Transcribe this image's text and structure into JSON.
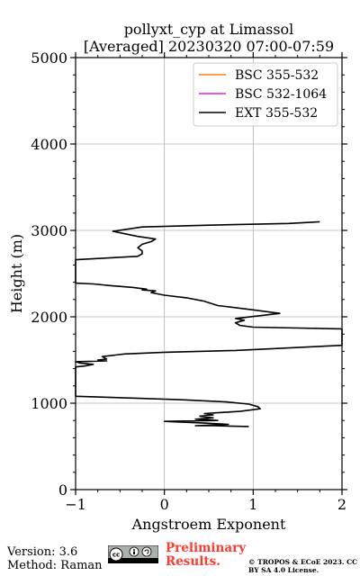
{
  "chart_data": {
    "type": "line",
    "title": "pollyxt_cyp at Limassol",
    "subtitle": "[Averaged] 20230320 07:00-07:59",
    "xlabel": "Angstroem Exponent",
    "ylabel": "Height (m)",
    "xlim": [
      -1,
      2
    ],
    "ylim": [
      0,
      5000
    ],
    "x_ticks": [
      -1,
      0,
      1,
      2
    ],
    "x_tick_labels": [
      "−1",
      "0",
      "1",
      "2"
    ],
    "y_ticks": [
      0,
      1000,
      2000,
      3000,
      4000,
      5000
    ],
    "y_tick_labels": [
      "0",
      "1000",
      "2000",
      "3000",
      "4000",
      "5000"
    ],
    "grid": true,
    "legend_position": "top-right",
    "series": [
      {
        "name": "BSC 355-532",
        "color": "#ff7f0e",
        "points": []
      },
      {
        "name": "BSC 532-1064",
        "color": "#e020e0",
        "points": []
      },
      {
        "name": "EXT 355-532",
        "color": "#000000",
        "points": [
          [
            0.95,
            730
          ],
          [
            0.55,
            740
          ],
          [
            0.35,
            740
          ],
          [
            0.72,
            755
          ],
          [
            0.45,
            770
          ],
          [
            0.0,
            790
          ],
          [
            0.6,
            800
          ],
          [
            0.35,
            815
          ],
          [
            0.55,
            830
          ],
          [
            0.4,
            850
          ],
          [
            0.55,
            865
          ],
          [
            0.45,
            880
          ],
          [
            0.6,
            890
          ],
          [
            0.85,
            905
          ],
          [
            1.08,
            935
          ],
          [
            1.05,
            960
          ],
          [
            0.95,
            990
          ],
          [
            0.7,
            1015
          ],
          [
            0.2,
            1040
          ],
          [
            -0.4,
            1060
          ],
          [
            -1.0,
            1080
          ],
          [
            -1.0,
            1420
          ],
          [
            -0.9,
            1430
          ],
          [
            -0.8,
            1450
          ],
          [
            -0.95,
            1465
          ],
          [
            -1.0,
            1480
          ],
          [
            -0.65,
            1490
          ],
          [
            -0.75,
            1500
          ],
          [
            -0.65,
            1510
          ],
          [
            -0.7,
            1540
          ],
          [
            -0.45,
            1570
          ],
          [
            0.0,
            1590
          ],
          [
            0.8,
            1610
          ],
          [
            2.0,
            1670
          ],
          [
            2.0,
            1860
          ],
          [
            1.0,
            1880
          ],
          [
            0.85,
            1900
          ],
          [
            0.8,
            1930
          ],
          [
            0.9,
            1960
          ],
          [
            0.8,
            1980
          ],
          [
            1.3,
            2040
          ],
          [
            1.0,
            2080
          ],
          [
            0.6,
            2130
          ],
          [
            0.45,
            2180
          ],
          [
            0.25,
            2220
          ],
          [
            0.0,
            2250
          ],
          [
            -0.15,
            2280
          ],
          [
            -0.1,
            2300
          ],
          [
            -0.25,
            2310
          ],
          [
            -0.2,
            2320
          ],
          [
            -0.35,
            2340
          ],
          [
            -0.6,
            2360
          ],
          [
            -0.8,
            2380
          ],
          [
            -1.0,
            2390
          ],
          [
            -1.0,
            2660
          ],
          [
            -0.3,
            2700
          ],
          [
            -0.25,
            2730
          ],
          [
            -0.25,
            2760
          ],
          [
            -0.3,
            2800
          ],
          [
            -0.25,
            2840
          ],
          [
            -0.15,
            2870
          ],
          [
            -0.1,
            2900
          ],
          [
            -0.3,
            2930
          ],
          [
            -0.58,
            2990
          ],
          [
            -0.25,
            3040
          ],
          [
            0.5,
            3060
          ],
          [
            1.4,
            3080
          ],
          [
            1.75,
            3100
          ]
        ]
      }
    ]
  },
  "footer": {
    "version": "Version: 3.6",
    "method": "Method: Raman",
    "preliminary": "Preliminary Results.",
    "copyright": "© TROPOS & ECoE 2023. CC BY SA 4.0 License."
  }
}
